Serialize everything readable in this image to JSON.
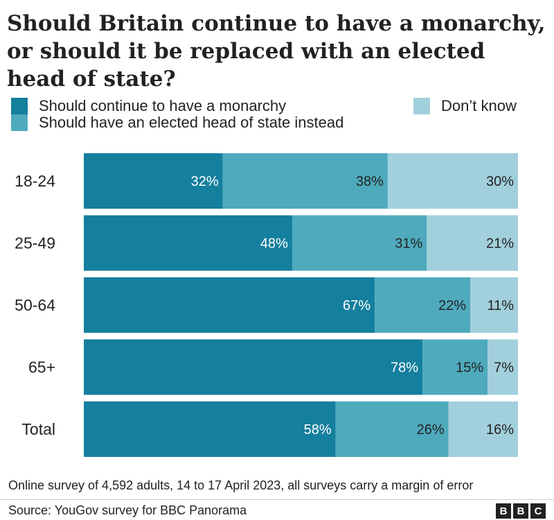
{
  "title": "Should Britain continue to have a monarchy, or should it be replaced with an elected head of state?",
  "legend": [
    {
      "label": "Should continue to have a monarchy",
      "color": "#157f9e"
    },
    {
      "label": "Should have an elected head of state instead",
      "color": "#4faabd"
    },
    {
      "label": "Don’t know",
      "color": "#a2cfdc"
    }
  ],
  "chart_data": {
    "type": "bar",
    "orientation": "horizontal",
    "stacked": true,
    "categories": [
      "18-24",
      "25-49",
      "50-64",
      "65+",
      "Total"
    ],
    "series": [
      {
        "name": "Should continue to have a monarchy",
        "values": [
          32,
          48,
          67,
          78,
          58
        ],
        "labels": [
          "32%",
          "48%",
          "67%",
          "78%",
          "58%"
        ],
        "color": "#157f9e"
      },
      {
        "name": "Should have an elected head of state instead",
        "values": [
          38,
          31,
          22,
          15,
          26
        ],
        "labels": [
          "38%",
          "31%",
          "22%",
          "15%",
          "26%"
        ],
        "color": "#4faabd"
      },
      {
        "name": "Don’t know",
        "values": [
          30,
          21,
          11,
          7,
          16
        ],
        "labels": [
          "30%",
          "21%",
          "11%",
          "7%",
          "16%"
        ],
        "color": "#a2cfdc"
      }
    ],
    "xlim": [
      0,
      100
    ],
    "grid": false,
    "legend_position": "top"
  },
  "footer": {
    "note": "Online survey of 4,592 adults, 14 to 17 April 2023, all surveys carry a margin of error",
    "source": "Source: YouGov survey for BBC Panorama",
    "logo": [
      "B",
      "B",
      "C"
    ]
  }
}
